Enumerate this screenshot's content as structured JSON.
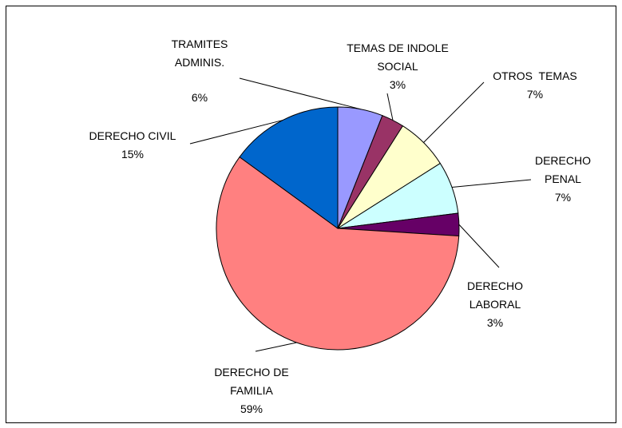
{
  "chart_data": {
    "type": "pie",
    "categories": [
      "TRAMITES ADMINIS.",
      "TEMAS DE INDOLE SOCIAL",
      "OTROS  TEMAS",
      "DERECHO PENAL",
      "DERECHO LABORAL",
      "DERECHO DE FAMILIA",
      "DERECHO CIVIL"
    ],
    "values": [
      6,
      3,
      7,
      7,
      3,
      59,
      15
    ],
    "value_labels": [
      "6%",
      "3%",
      "7%",
      "7%",
      "3%",
      "59%",
      "15%"
    ],
    "colors": [
      "#9999ff",
      "#993366",
      "#ffffcc",
      "#ccffff",
      "#660066",
      "#ff8080",
      "#0066cc"
    ]
  }
}
